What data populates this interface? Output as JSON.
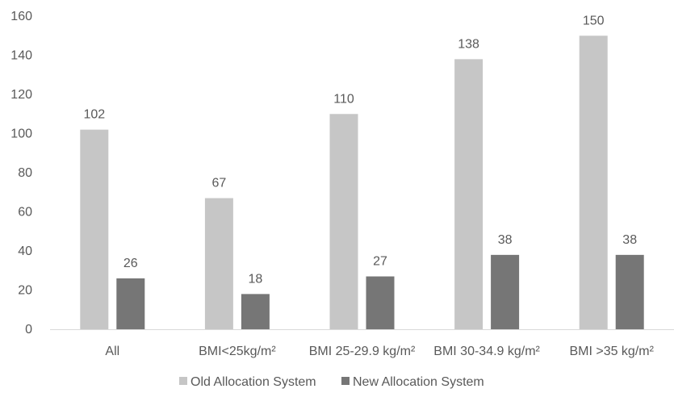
{
  "chart_data": {
    "type": "bar",
    "title": "",
    "xlabel": "",
    "ylabel": "",
    "categories": [
      "All",
      "BMI<25kg/m²",
      "BMI 25-29.9 kg/m²",
      "BMI 30-34.9 kg/m²",
      "BMI >35 kg/m²"
    ],
    "series": [
      {
        "name": "Old Allocation System",
        "values": [
          102,
          67,
          110,
          138,
          150
        ],
        "color": "#c6c6c6"
      },
      {
        "name": "New Allocation System",
        "values": [
          26,
          18,
          27,
          38,
          38
        ],
        "color": "#767676"
      }
    ],
    "ylim": [
      0,
      160
    ],
    "yticks": [
      0,
      20,
      40,
      60,
      80,
      100,
      120,
      140,
      160
    ],
    "grid": false,
    "legend_position": "bottom"
  }
}
